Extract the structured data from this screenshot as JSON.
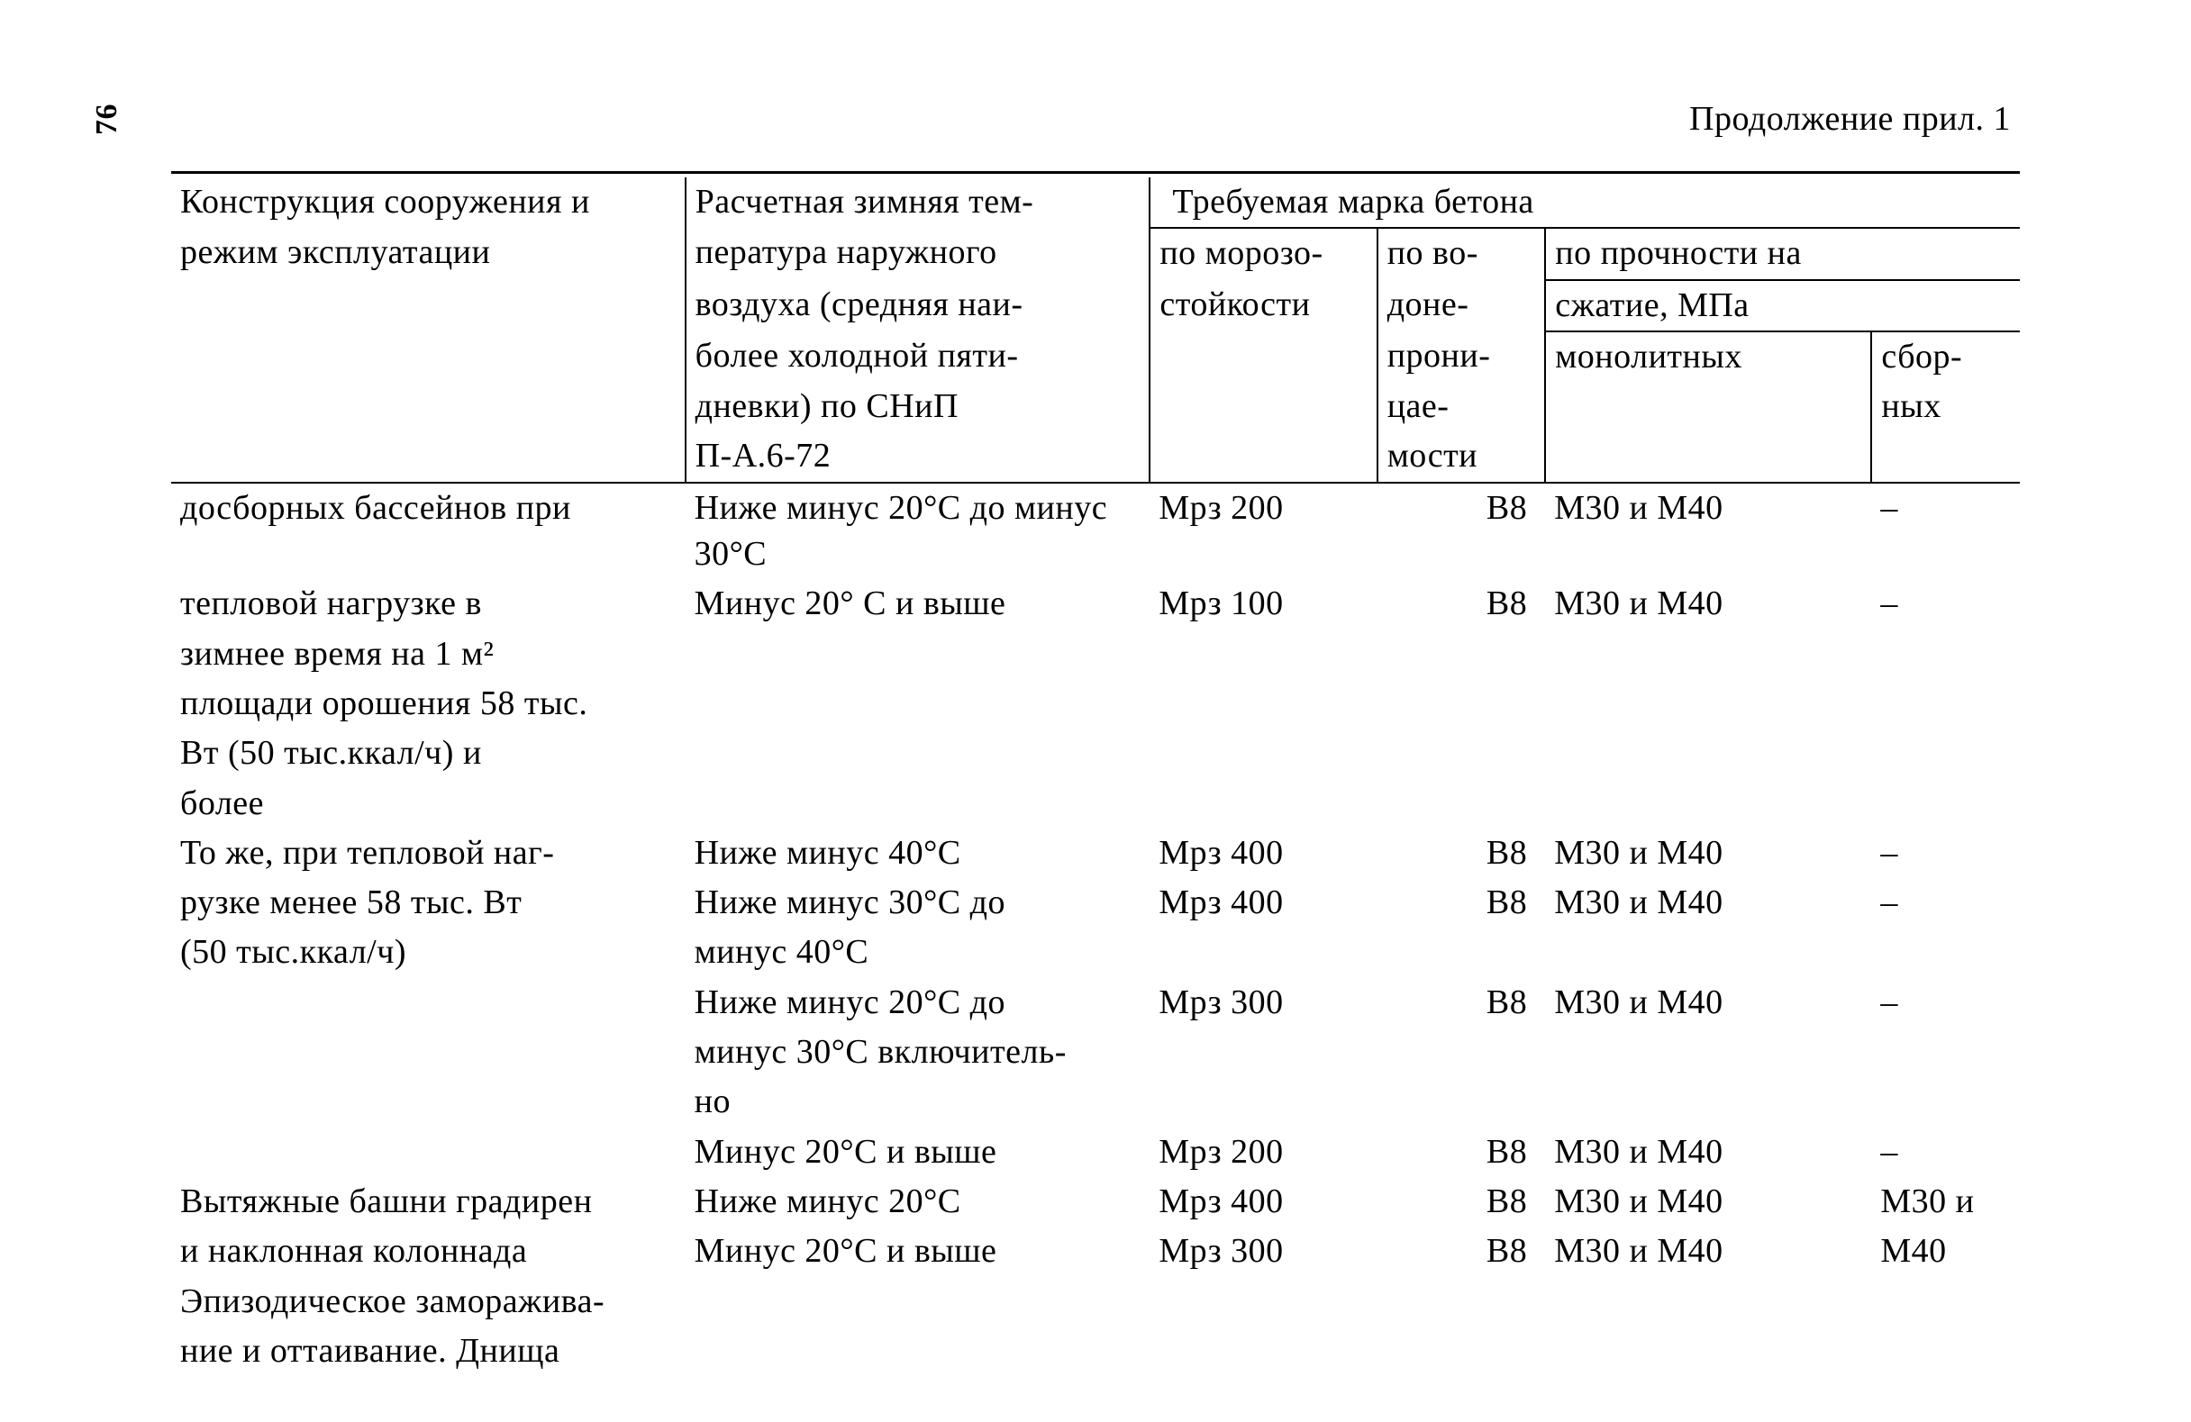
{
  "page_number": "76",
  "continuation_label": "Продолжение прил. 1",
  "header": {
    "col1_l1": "Конструкция сооружения и",
    "col1_l2": "режим эксплуатации",
    "col2_l1": "Расчетная зимняя тем-",
    "col2_l2": "пература наружного",
    "col2_l3": "воздуха (средняя наи-",
    "col2_l4": "более холодной пяти-",
    "col2_l5": "дневки) по СНиП",
    "col2_l6": "П-А.6-72",
    "span_top": "Требуемая марка бетона",
    "col3_l1": "по морозо-",
    "col3_l2": "стойкости",
    "col4_l1": "по во-",
    "col4_l2": "доне-",
    "col4_l3": "прони-",
    "col4_l4": "цае-",
    "col4_l5": "мости",
    "col56_l1": "по прочности на",
    "col56_l2": "сжатие, МПа",
    "col5_l3": "монолитных",
    "col6_l3": "сбор-",
    "col6_l4": "ных"
  },
  "body": [
    {
      "desc": [
        "досборных бассейнов при",
        "тепловой нагрузке в",
        "зимнее время на 1 м²",
        "площади орошения 58 тыс.",
        "Вт (50 тыс.ккал/ч) и",
        "более"
      ],
      "rows": [
        {
          "temp": "Ниже минус 20°С до минус 30°С",
          "mrz": "Мрз 200",
          "v": "В8",
          "mono": "М30 и М40",
          "sbor": "–"
        },
        {
          "temp": "Минус 20° С и выше",
          "mrz": "Мрз 100",
          "v": "В8",
          "mono": "М30 и М40",
          "sbor": "–"
        }
      ]
    },
    {
      "desc": [
        "То же, при тепловой наг-",
        "рузке менее 58 тыс. Вт",
        "(50 тыс.ккал/ч)"
      ],
      "rows": [
        {
          "temp": "Ниже минус 40°С",
          "mrz": "Мрз 400",
          "v": "В8",
          "mono": "М30 и М40",
          "sbor": "–"
        },
        {
          "temp": "Ниже минус 30°С до\nминус 40°С",
          "mrz": "Мрз 400",
          "v": "В8",
          "mono": "М30 и М40",
          "sbor": "–"
        },
        {
          "temp": "Ниже минус 20°С до\nминус 30°С включитель-\nно",
          "mrz": "Мрз 300",
          "v": "В8",
          "mono": "М30 и М40",
          "sbor": "–"
        },
        {
          "temp": "Минус 20°С и выше",
          "mrz": "Мрз 200",
          "v": "В8",
          "mono": "М30 и М40",
          "sbor": "–"
        }
      ]
    },
    {
      "desc": [
        "Вытяжные башни градирен",
        "и наклонная колоннада",
        "Эпизодическое заморажива-",
        "ние и оттаивание. Днища"
      ],
      "rows": [
        {
          "temp": "Ниже минус 20°С",
          "mrz": "Мрз 400",
          "v": "В8",
          "mono": "М30 и М40",
          "sbor": "М30 и"
        },
        {
          "temp": "Минус 20°С и выше",
          "mrz": "Мрз 300",
          "v": "В8",
          "mono": "М30 и М40",
          "sbor": "М40"
        }
      ]
    }
  ]
}
